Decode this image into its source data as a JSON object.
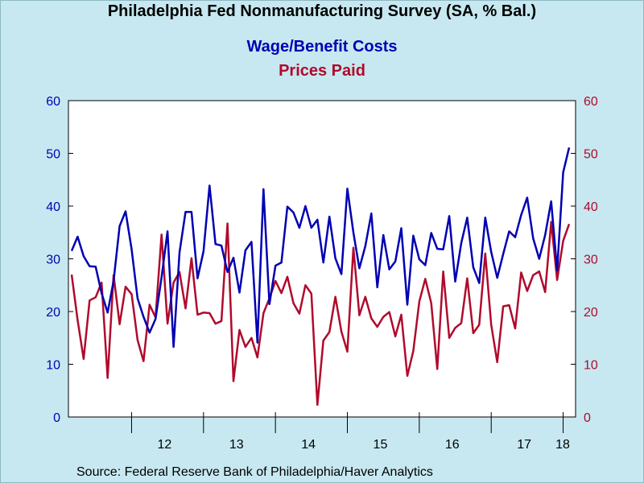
{
  "title": "Philadelphia Fed Nonmanufacturing Survey (SA, % Bal.)",
  "source": "Source:  Federal Reserve Bank of Philadelphia/Haver Analytics",
  "chart_data": {
    "type": "line",
    "legend": [
      {
        "label": "Wage/Benefit Costs",
        "color": "#0000b3"
      },
      {
        "label": "Prices Paid",
        "color": "#b00a2c"
      }
    ],
    "ylim": [
      0,
      60
    ],
    "left_ticks": [
      "0",
      "10",
      "20",
      "30",
      "40",
      "50",
      "60"
    ],
    "right_ticks": [
      "0",
      "10",
      "20",
      "30",
      "40",
      "50",
      "60"
    ],
    "x_tick_labels": [
      "12",
      "13",
      "14",
      "15",
      "16",
      "17",
      "18"
    ],
    "x_start": "2011-03",
    "series": [
      {
        "name": "Wage/Benefit Costs",
        "color": "#0000b3",
        "values": [
          31.5,
          34.2,
          30.5,
          28.6,
          28.5,
          23.5,
          19.8,
          25.8,
          36.2,
          39.0,
          31.8,
          22.5,
          19.0,
          16.0,
          18.6,
          26.5,
          35.2,
          13.3,
          31.2,
          38.9,
          38.9,
          26.3,
          31.4,
          43.9,
          32.8,
          32.5,
          27.5,
          30.2,
          23.6,
          31.6,
          33.2,
          14.1,
          43.2,
          21.4,
          28.7,
          29.3,
          39.9,
          38.8,
          35.9,
          40.0,
          35.9,
          37.4,
          29.3,
          38.0,
          30.1,
          27.1,
          43.3,
          35.0,
          28.2,
          32.4,
          38.6,
          24.6,
          34.5,
          28.0,
          29.5,
          35.8,
          21.3,
          34.4,
          29.9,
          28.8,
          34.9,
          31.9,
          31.8,
          38.1,
          25.7,
          33.0,
          37.8,
          28.4,
          25.4,
          37.8,
          31.3,
          26.4,
          30.9,
          35.2,
          34.1,
          38.3,
          41.6,
          33.9,
          30.0,
          34.5,
          40.9,
          27.8,
          46.4,
          51.1
        ]
      },
      {
        "name": "Prices Paid",
        "color": "#b00a2c",
        "values": [
          27.0,
          18.4,
          11.0,
          22.1,
          22.7,
          25.5,
          7.4,
          26.9,
          17.6,
          24.7,
          23.3,
          14.6,
          10.6,
          21.3,
          18.9,
          34.6,
          17.7,
          25.5,
          27.5,
          20.6,
          30.1,
          19.4,
          19.8,
          19.7,
          17.7,
          18.2,
          36.7,
          6.8,
          16.5,
          13.3,
          15.0,
          11.3,
          19.7,
          22.5,
          25.8,
          23.5,
          26.6,
          21.6,
          19.6,
          25.0,
          23.4,
          2.3,
          14.5,
          16.1,
          22.8,
          16.2,
          12.4,
          32.1,
          19.3,
          22.8,
          18.7,
          17.1,
          19.0,
          19.9,
          15.3,
          19.4,
          7.8,
          12.5,
          21.9,
          26.2,
          21.6,
          9.1,
          27.6,
          15.0,
          16.9,
          17.8,
          26.3,
          15.9,
          17.5,
          31.0,
          17.5,
          10.4,
          21.0,
          21.2,
          16.8,
          27.4,
          23.9,
          26.9,
          27.6,
          23.7,
          37.0,
          26.0,
          33.4,
          36.6
        ]
      }
    ]
  }
}
